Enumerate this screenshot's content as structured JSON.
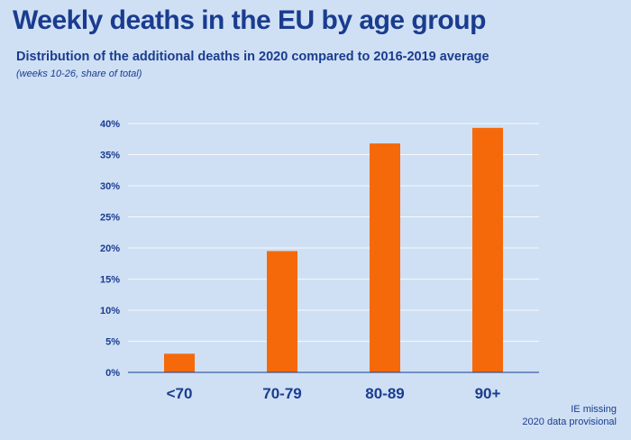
{
  "header": {
    "title": "Weekly deaths in the EU by age group",
    "subtitle": "Distribution of the additional deaths in 2020 compared to 2016-2019 average",
    "note": "(weeks 10-26, share of total)"
  },
  "footnote": {
    "line1": "IE missing",
    "line2": "2020 data provisional"
  },
  "colors": {
    "background": "#cfe0f4",
    "bar": "#f5690a",
    "text": "#1a3c8f",
    "grid": "#ffffff"
  },
  "chart_data": {
    "type": "bar",
    "categories": [
      "<70",
      "70-79",
      "80-89",
      "90+"
    ],
    "values": [
      3,
      19.5,
      36.8,
      39.3
    ],
    "yticks": [
      "0%",
      "5%",
      "10%",
      "15%",
      "20%",
      "25%",
      "30%",
      "35%",
      "40%"
    ],
    "ylim": [
      0,
      40
    ],
    "grid": true,
    "title": "Weekly deaths in the EU by age group",
    "xlabel": "",
    "ylabel": ""
  }
}
